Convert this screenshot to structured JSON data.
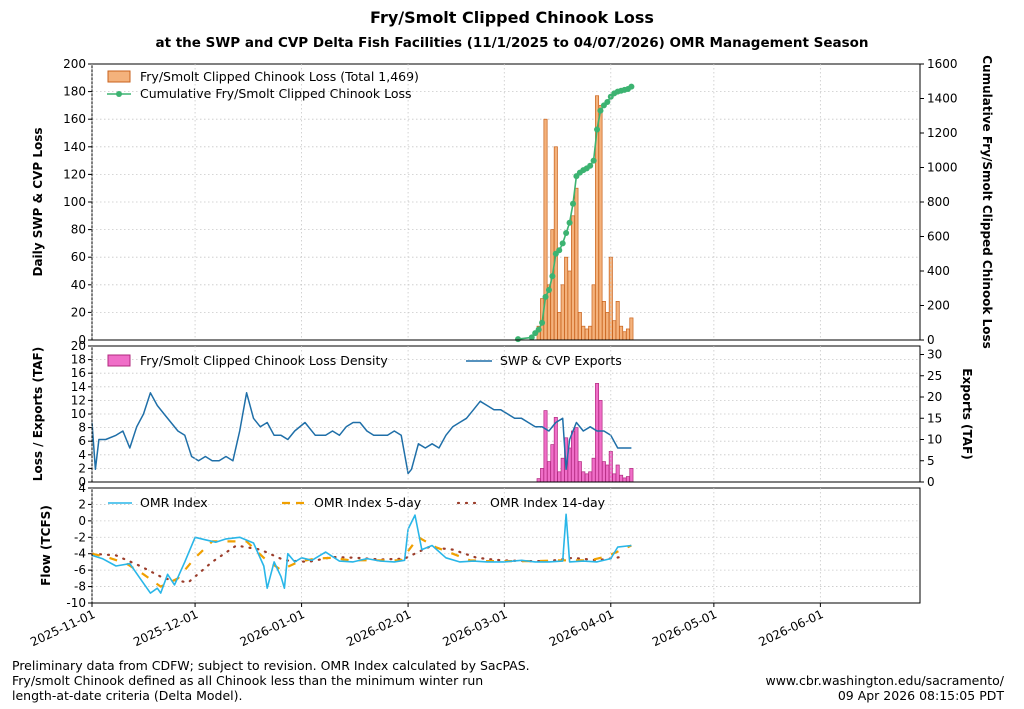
{
  "title": "Fry/Smolt Clipped Chinook Loss",
  "subtitle": "at the SWP and CVP Delta Fish Facilities (11/1/2025 to 04/07/2026) OMR Management Season",
  "footer": {
    "note_lines": [
      "Preliminary data from CDFW; subject to revision. OMR Index calculated by SacPAS.",
      "Fry/smolt Chinook defined as all Chinook less than the minimum winter run",
      "length-at-date criteria (Delta Model)."
    ],
    "source": "www.cbr.washington.edu/sacramento/",
    "timestamp": "09 Apr 2026 08:15:05 PDT"
  },
  "colors": {
    "loss_bar_fill": "#f4b27c",
    "loss_bar_edge": "#c8621c",
    "cumulative_line": "#3cb371",
    "density_bar_fill": "#f06ec8",
    "density_bar_edge": "#b0287e",
    "exports_line": "#1f6fa8",
    "omr_line": "#29b6e8",
    "omr5_line": "#f0a000",
    "omr14_line": "#9b3d2b"
  },
  "chart_data": [
    {
      "type": "bar",
      "panel": "top",
      "ylabel": "Daily SWP & CVP Loss",
      "y2label": "Cumulative Fry/Smolt Clipped Chinook Loss",
      "ylim": [
        0,
        200
      ],
      "y2lim": [
        0,
        1600
      ],
      "yticks": [
        0,
        20,
        40,
        60,
        80,
        100,
        120,
        140,
        160,
        180,
        200
      ],
      "y2ticks": [
        0,
        200,
        400,
        600,
        800,
        1000,
        1200,
        1400,
        1600
      ],
      "grid": true,
      "legend_position": "top-left",
      "series": [
        {
          "name": "Fry/Smolt Clipped Chinook Loss (Total 1,469)",
          "kind": "bar",
          "axis": "left",
          "x": [
            "2026-03-11",
            "2026-03-12",
            "2026-03-13",
            "2026-03-14",
            "2026-03-15",
            "2026-03-16",
            "2026-03-17",
            "2026-03-18",
            "2026-03-19",
            "2026-03-20",
            "2026-03-21",
            "2026-03-22",
            "2026-03-23",
            "2026-03-24",
            "2026-03-25",
            "2026-03-26",
            "2026-03-27",
            "2026-03-28",
            "2026-03-29",
            "2026-03-30",
            "2026-03-31",
            "2026-04-01",
            "2026-04-02",
            "2026-04-03",
            "2026-04-04",
            "2026-04-05",
            "2026-04-06",
            "2026-04-07"
          ],
          "values": [
            10,
            30,
            160,
            40,
            80,
            140,
            20,
            40,
            60,
            50,
            90,
            110,
            20,
            10,
            8,
            10,
            40,
            177,
            170,
            28,
            20,
            60,
            14,
            28,
            10,
            6,
            8,
            16
          ]
        },
        {
          "name": "Cumulative Fry/Smolt Clipped Chinook Loss",
          "kind": "line",
          "axis": "right",
          "x": [
            "2026-03-05",
            "2026-03-09",
            "2026-03-10",
            "2026-03-11",
            "2026-03-12",
            "2026-03-13",
            "2026-03-14",
            "2026-03-15",
            "2026-03-16",
            "2026-03-17",
            "2026-03-18",
            "2026-03-19",
            "2026-03-20",
            "2026-03-21",
            "2026-03-22",
            "2026-03-23",
            "2026-03-24",
            "2026-03-25",
            "2026-03-26",
            "2026-03-27",
            "2026-03-28",
            "2026-03-29",
            "2026-03-30",
            "2026-03-31",
            "2026-04-01",
            "2026-04-02",
            "2026-04-03",
            "2026-04-04",
            "2026-04-05",
            "2026-04-06",
            "2026-04-07"
          ],
          "values": [
            5,
            15,
            40,
            60,
            100,
            250,
            290,
            370,
            500,
            520,
            560,
            620,
            680,
            790,
            950,
            970,
            985,
            995,
            1010,
            1040,
            1220,
            1330,
            1360,
            1380,
            1410,
            1430,
            1440,
            1445,
            1450,
            1455,
            1469
          ]
        }
      ]
    },
    {
      "type": "bar",
      "panel": "middle",
      "ylabel": "Loss / Exports (TAF)",
      "y2label": "Exports (TAF)",
      "ylim": [
        0,
        20
      ],
      "y2lim": [
        0,
        32
      ],
      "yticks": [
        0,
        2,
        4,
        6,
        8,
        10,
        12,
        14,
        16,
        18,
        20
      ],
      "y2ticks": [
        0,
        5,
        10,
        15,
        20,
        25,
        30
      ],
      "grid": true,
      "legend_position": "top",
      "series": [
        {
          "name": "Fry/Smolt Clipped Chinook Loss Density",
          "kind": "bar",
          "axis": "left",
          "x": [
            "2026-03-11",
            "2026-03-12",
            "2026-03-13",
            "2026-03-14",
            "2026-03-15",
            "2026-03-16",
            "2026-03-17",
            "2026-03-18",
            "2026-03-19",
            "2026-03-20",
            "2026-03-21",
            "2026-03-22",
            "2026-03-23",
            "2026-03-24",
            "2026-03-25",
            "2026-03-26",
            "2026-03-27",
            "2026-03-28",
            "2026-03-29",
            "2026-03-30",
            "2026-03-31",
            "2026-04-01",
            "2026-04-02",
            "2026-04-03",
            "2026-04-04",
            "2026-04-05",
            "2026-04-06",
            "2026-04-07"
          ],
          "values": [
            0.5,
            2,
            10.5,
            3,
            5.5,
            9.5,
            1.5,
            3.5,
            6.5,
            5,
            7.5,
            8,
            3,
            1.5,
            1.2,
            1.5,
            3.5,
            14.5,
            12,
            3,
            2.5,
            4.5,
            1.2,
            2.5,
            1,
            0.6,
            0.8,
            2
          ]
        },
        {
          "name": "SWP & CVP Exports",
          "kind": "line",
          "axis": "right",
          "x": [
            "2025-11-01",
            "2025-11-02",
            "2025-11-03",
            "2025-11-05",
            "2025-11-08",
            "2025-11-10",
            "2025-11-12",
            "2025-11-14",
            "2025-11-16",
            "2025-11-18",
            "2025-11-20",
            "2025-11-22",
            "2025-11-24",
            "2025-11-26",
            "2025-11-28",
            "2025-11-30",
            "2025-12-02",
            "2025-12-04",
            "2025-12-06",
            "2025-12-08",
            "2025-12-10",
            "2025-12-12",
            "2025-12-14",
            "2025-12-16",
            "2025-12-18",
            "2025-12-20",
            "2025-12-22",
            "2025-12-24",
            "2025-12-26",
            "2025-12-28",
            "2025-12-30",
            "2026-01-02",
            "2026-01-05",
            "2026-01-08",
            "2026-01-10",
            "2026-01-12",
            "2026-01-14",
            "2026-01-16",
            "2026-01-18",
            "2026-01-20",
            "2026-01-22",
            "2026-01-24",
            "2026-01-26",
            "2026-01-28",
            "2026-01-30",
            "2026-02-01",
            "2026-02-02",
            "2026-02-04",
            "2026-02-06",
            "2026-02-08",
            "2026-02-10",
            "2026-02-12",
            "2026-02-14",
            "2026-02-16",
            "2026-02-18",
            "2026-02-20",
            "2026-02-22",
            "2026-02-24",
            "2026-02-26",
            "2026-02-28",
            "2026-03-02",
            "2026-03-04",
            "2026-03-06",
            "2026-03-08",
            "2026-03-10",
            "2026-03-12",
            "2026-03-14",
            "2026-03-16",
            "2026-03-18",
            "2026-03-19",
            "2026-03-20",
            "2026-03-22",
            "2026-03-24",
            "2026-03-26",
            "2026-03-28",
            "2026-03-30",
            "2026-04-01",
            "2026-04-03",
            "2026-04-05",
            "2026-04-07"
          ],
          "values": [
            14,
            3,
            10,
            10,
            11,
            12,
            8,
            13,
            16,
            21,
            18,
            16,
            14,
            12,
            11,
            6,
            5,
            6,
            5,
            5,
            6,
            5,
            12,
            21,
            15,
            13,
            14,
            11,
            11,
            10,
            12,
            14,
            11,
            11,
            12,
            11,
            13,
            14,
            14,
            12,
            11,
            11,
            11,
            12,
            11,
            2,
            3,
            9,
            8,
            9,
            8,
            11,
            13,
            14,
            15,
            17,
            19,
            18,
            17,
            17,
            16,
            15,
            15,
            14,
            13,
            13,
            12,
            14,
            15,
            3,
            10,
            14,
            12,
            13,
            12,
            12,
            11,
            8,
            8,
            8
          ]
        }
      ]
    },
    {
      "type": "line",
      "panel": "bottom",
      "ylabel": "Flow (TCFS)",
      "ylim": [
        -10,
        4
      ],
      "yticks": [
        -10,
        -8,
        -6,
        -4,
        -2,
        0,
        2,
        4
      ],
      "x_tick_labels": [
        "2025-11-01",
        "2025-12-01",
        "2026-01-01",
        "2026-02-01",
        "2026-03-01",
        "2026-04-01",
        "2026-05-01",
        "2026-06-01"
      ],
      "xlim": [
        "2025-11-01",
        "2026-06-30"
      ],
      "grid": true,
      "legend_position": "top",
      "series": [
        {
          "name": "OMR Index",
          "x": [
            "2025-11-01",
            "2025-11-04",
            "2025-11-08",
            "2025-11-12",
            "2025-11-15",
            "2025-11-18",
            "2025-11-20",
            "2025-11-21",
            "2025-11-23",
            "2025-11-25",
            "2025-11-28",
            "2025-12-01",
            "2025-12-04",
            "2025-12-07",
            "2025-12-10",
            "2025-12-14",
            "2025-12-18",
            "2025-12-21",
            "2025-12-22",
            "2025-12-24",
            "2025-12-26",
            "2025-12-27",
            "2025-12-28",
            "2025-12-30",
            "2026-01-01",
            "2026-01-04",
            "2026-01-08",
            "2026-01-12",
            "2026-01-16",
            "2026-01-20",
            "2026-01-24",
            "2026-01-28",
            "2026-01-31",
            "2026-02-01",
            "2026-02-03",
            "2026-02-05",
            "2026-02-08",
            "2026-02-12",
            "2026-02-16",
            "2026-02-20",
            "2026-02-24",
            "2026-03-01",
            "2026-03-06",
            "2026-03-10",
            "2026-03-14",
            "2026-03-18",
            "2026-03-19",
            "2026-03-20",
            "2026-03-24",
            "2026-03-28",
            "2026-04-01",
            "2026-04-03",
            "2026-04-07"
          ],
          "values": [
            -4.2,
            -4.6,
            -5.5,
            -5.2,
            -7.0,
            -8.8,
            -8.2,
            -8.8,
            -6.5,
            -7.8,
            -5.0,
            -2.0,
            -2.3,
            -2.6,
            -2.2,
            -2.0,
            -2.7,
            -5.5,
            -8.2,
            -5.0,
            -6.8,
            -8.2,
            -4.0,
            -5.0,
            -4.5,
            -4.8,
            -3.8,
            -4.9,
            -5.0,
            -4.6,
            -4.9,
            -5.0,
            -4.8,
            -1.0,
            0.7,
            -3.5,
            -3.0,
            -4.5,
            -5.0,
            -4.9,
            -5.0,
            -5.0,
            -4.8,
            -5.0,
            -5.0,
            -4.9,
            0.8,
            -5.0,
            -4.9,
            -5.0,
            -4.6,
            -3.2,
            -3.0
          ]
        },
        {
          "name": "OMR Index 5-day",
          "x": [
            "2025-11-01",
            "2025-11-06",
            "2025-11-11",
            "2025-11-16",
            "2025-11-21",
            "2025-11-26",
            "2025-12-01",
            "2025-12-06",
            "2025-12-11",
            "2025-12-16",
            "2025-12-21",
            "2025-12-26",
            "2025-12-31",
            "2026-01-05",
            "2026-01-10",
            "2026-01-15",
            "2026-01-20",
            "2026-01-25",
            "2026-01-30",
            "2026-02-04",
            "2026-02-09",
            "2026-02-14",
            "2026-02-19",
            "2026-02-24",
            "2026-03-01",
            "2026-03-06",
            "2026-03-11",
            "2026-03-16",
            "2026-03-21",
            "2026-03-26",
            "2026-03-31",
            "2026-04-07"
          ],
          "values": [
            -4.0,
            -4.5,
            -5.2,
            -6.5,
            -8.0,
            -7.0,
            -4.5,
            -2.5,
            -2.5,
            -2.5,
            -4.5,
            -6.0,
            -5.0,
            -4.6,
            -4.5,
            -4.8,
            -4.8,
            -4.8,
            -4.8,
            -2.0,
            -3.2,
            -4.0,
            -4.8,
            -4.9,
            -4.9,
            -4.9,
            -4.9,
            -4.8,
            -4.8,
            -4.8,
            -4.3,
            -3.0
          ]
        },
        {
          "name": "OMR Index 14-day",
          "x": [
            "2025-11-01",
            "2025-11-08",
            "2025-11-15",
            "2025-11-22",
            "2025-11-29",
            "2025-12-06",
            "2025-12-13",
            "2025-12-20",
            "2025-12-27",
            "2026-01-03",
            "2026-01-10",
            "2026-01-17",
            "2026-01-24",
            "2026-01-31",
            "2026-02-07",
            "2026-02-14",
            "2026-02-21",
            "2026-02-28",
            "2026-03-07",
            "2026-03-14",
            "2026-03-21",
            "2026-03-28",
            "2026-04-04"
          ],
          "values": [
            -4.0,
            -4.2,
            -5.5,
            -7.0,
            -7.5,
            -5.0,
            -3.0,
            -3.5,
            -4.8,
            -5.0,
            -4.4,
            -4.5,
            -4.7,
            -4.6,
            -3.2,
            -3.5,
            -4.5,
            -4.8,
            -4.9,
            -4.9,
            -4.5,
            -4.8,
            -4.4
          ]
        }
      ]
    }
  ]
}
